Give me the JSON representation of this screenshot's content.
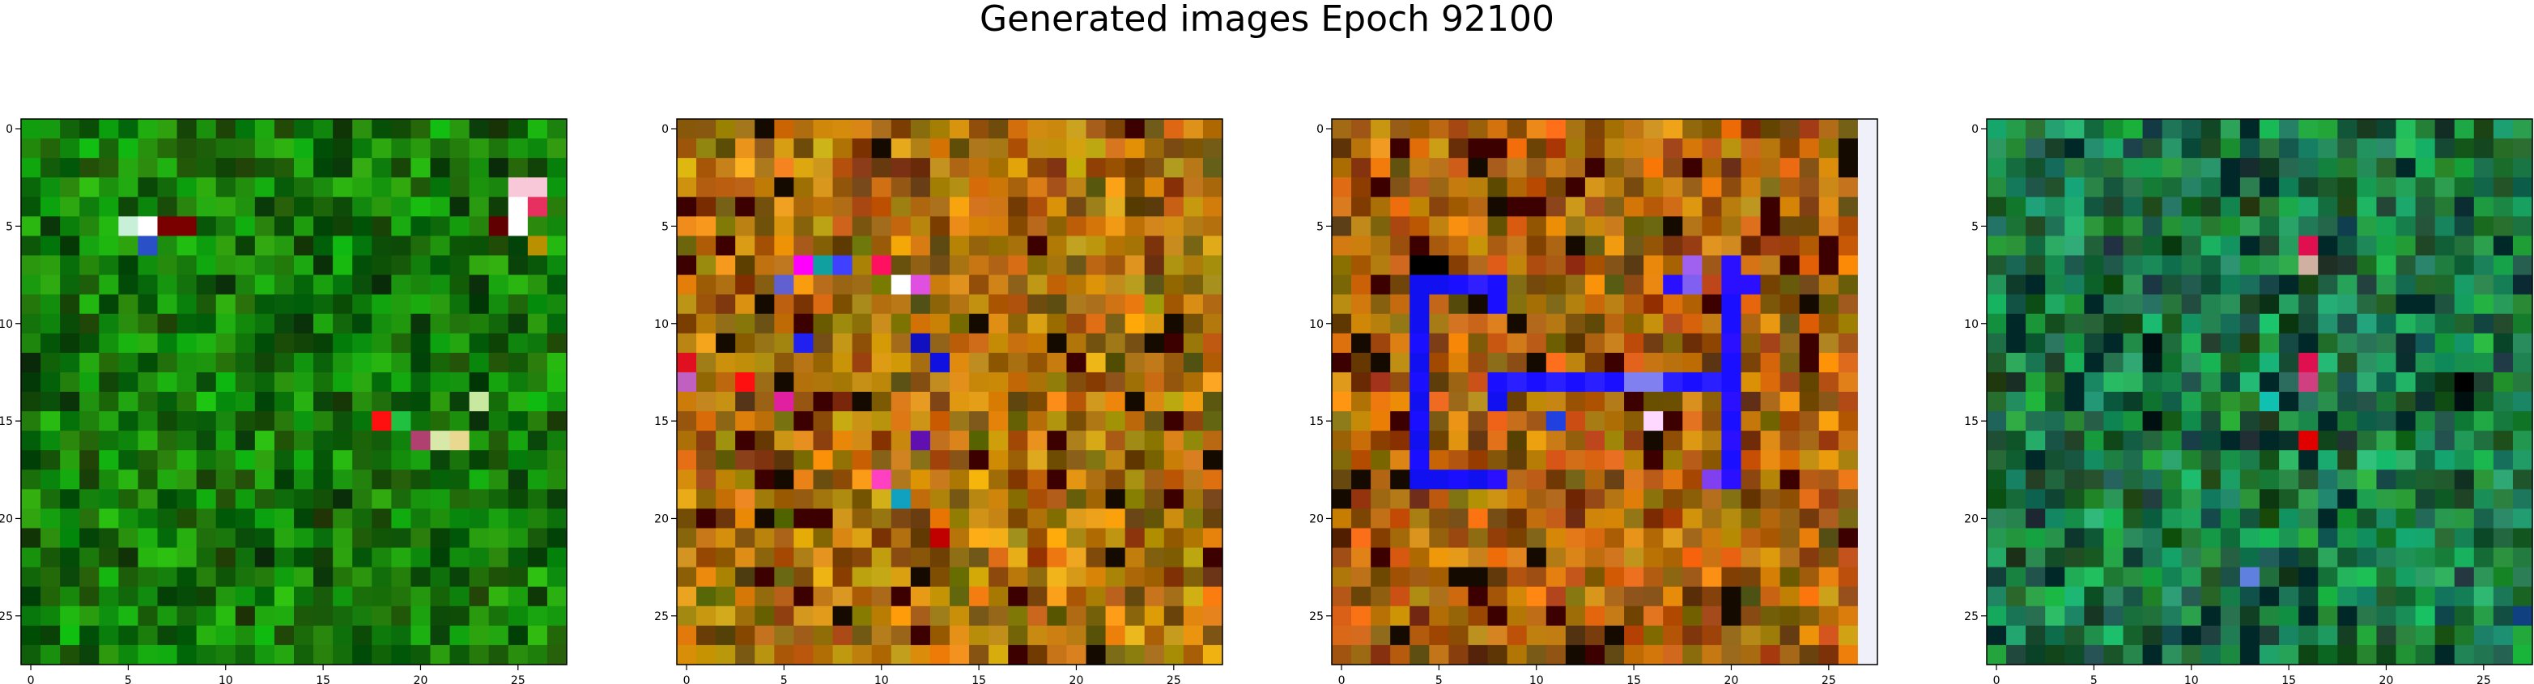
{
  "figure": {
    "title": "Generated images Epoch 92100"
  },
  "chart_data": [
    {
      "type": "heatmap",
      "xlim": [
        -0.5,
        27.5
      ],
      "ylim": [
        27.5,
        -0.5
      ],
      "xticks": [
        "0",
        "5",
        "10",
        "15",
        "20",
        "25"
      ],
      "yticks": [
        "0",
        "5",
        "10",
        "15",
        "20",
        "25"
      ],
      "grid": false,
      "palette": {
        "base": "#1a8a10",
        "variation": "green"
      },
      "highlights": [
        {
          "row": 5,
          "col": 5,
          "color": "#c8f0d8"
        },
        {
          "row": 5,
          "col": 6,
          "color": "#ffffff"
        },
        {
          "row": 6,
          "col": 6,
          "color": "#2a50c8"
        },
        {
          "row": 5,
          "col": 7,
          "color": "#7a0000"
        },
        {
          "row": 5,
          "col": 8,
          "color": "#7a0000"
        },
        {
          "row": 3,
          "col": 25,
          "color": "#f8c8d8"
        },
        {
          "row": 3,
          "col": 26,
          "color": "#f8c8d8"
        },
        {
          "row": 4,
          "col": 25,
          "color": "#ffffff"
        },
        {
          "row": 4,
          "col": 26,
          "color": "#e83060"
        },
        {
          "row": 5,
          "col": 25,
          "color": "#ffffff"
        },
        {
          "row": 5,
          "col": 24,
          "color": "#600000"
        },
        {
          "row": 6,
          "col": 26,
          "color": "#b89000"
        },
        {
          "row": 15,
          "col": 18,
          "color": "#ff1010"
        },
        {
          "row": 15,
          "col": 19,
          "color": "#20c040"
        },
        {
          "row": 16,
          "col": 21,
          "color": "#d8e8a8"
        },
        {
          "row": 16,
          "col": 22,
          "color": "#e8d890"
        },
        {
          "row": 16,
          "col": 20,
          "color": "#b04070"
        },
        {
          "row": 14,
          "col": 23,
          "color": "#c8e8a0"
        }
      ]
    },
    {
      "type": "heatmap",
      "xlim": [
        -0.5,
        27.5
      ],
      "ylim": [
        27.5,
        -0.5
      ],
      "xticks": [
        "0",
        "5",
        "10",
        "15",
        "20",
        "25"
      ],
      "yticks": [
        "0",
        "5",
        "10",
        "15",
        "20",
        "25"
      ],
      "grid": false,
      "palette": {
        "base": "#b07a10",
        "variation": "warm"
      },
      "highlights": [
        {
          "row": 7,
          "col": 6,
          "color": "#ff00ff"
        },
        {
          "row": 7,
          "col": 7,
          "color": "#10a0a0"
        },
        {
          "row": 7,
          "col": 8,
          "color": "#4040ff"
        },
        {
          "row": 7,
          "col": 10,
          "color": "#ff1060"
        },
        {
          "row": 8,
          "col": 5,
          "color": "#6060d0"
        },
        {
          "row": 8,
          "col": 11,
          "color": "#ffffff"
        },
        {
          "row": 8,
          "col": 12,
          "color": "#e050e0"
        },
        {
          "row": 11,
          "col": 6,
          "color": "#2020f0"
        },
        {
          "row": 11,
          "col": 12,
          "color": "#1010c0"
        },
        {
          "row": 12,
          "col": 13,
          "color": "#1010e0"
        },
        {
          "row": 12,
          "col": 0,
          "color": "#e01020"
        },
        {
          "row": 13,
          "col": 0,
          "color": "#c060c0"
        },
        {
          "row": 13,
          "col": 3,
          "color": "#ff1010"
        },
        {
          "row": 14,
          "col": 5,
          "color": "#e020a0"
        },
        {
          "row": 16,
          "col": 12,
          "color": "#6010b0"
        },
        {
          "row": 18,
          "col": 10,
          "color": "#ff40c0"
        },
        {
          "row": 19,
          "col": 11,
          "color": "#10a0c0"
        },
        {
          "row": 21,
          "col": 13,
          "color": "#c00000"
        }
      ]
    },
    {
      "type": "heatmap",
      "xlim": [
        -0.5,
        27.5
      ],
      "ylim": [
        27.5,
        -0.5
      ],
      "xticks": [
        "0",
        "5",
        "10",
        "15",
        "20",
        "25"
      ],
      "yticks": [
        "0",
        "5",
        "10",
        "15",
        "20",
        "25"
      ],
      "grid": false,
      "palette": {
        "base": "#b06a10",
        "variation": "warm",
        "edge_column": {
          "col": 27,
          "color": "#f0f0fa"
        }
      },
      "highlights": [
        {
          "row": 7,
          "col": 4,
          "color": "#000000"
        },
        {
          "row": 7,
          "col": 5,
          "color": "#000000"
        },
        {
          "row": 8,
          "col": 4,
          "color": "#1010f0"
        },
        {
          "row": 8,
          "col": 5,
          "color": "#1010f0"
        },
        {
          "row": 8,
          "col": 6,
          "color": "#1a10ff"
        },
        {
          "row": 8,
          "col": 7,
          "color": "#3020ff"
        },
        {
          "row": 8,
          "col": 8,
          "color": "#1a10ff"
        },
        {
          "row": 9,
          "col": 4,
          "color": "#1010f0"
        },
        {
          "row": 9,
          "col": 8,
          "color": "#1a10ff"
        },
        {
          "row": 10,
          "col": 4,
          "color": "#1010f0"
        },
        {
          "row": 11,
          "col": 4,
          "color": "#1a10ff"
        },
        {
          "row": 12,
          "col": 4,
          "color": "#1010f0"
        },
        {
          "row": 13,
          "col": 4,
          "color": "#1a10ff"
        },
        {
          "row": 14,
          "col": 4,
          "color": "#1010f0"
        },
        {
          "row": 15,
          "col": 4,
          "color": "#1a10ff"
        },
        {
          "row": 16,
          "col": 4,
          "color": "#1010f0"
        },
        {
          "row": 17,
          "col": 4,
          "color": "#1a10ff"
        },
        {
          "row": 18,
          "col": 4,
          "color": "#1010f0"
        },
        {
          "row": 18,
          "col": 5,
          "color": "#1010f0"
        },
        {
          "row": 18,
          "col": 6,
          "color": "#1a10ff"
        },
        {
          "row": 18,
          "col": 7,
          "color": "#1010f0"
        },
        {
          "row": 18,
          "col": 8,
          "color": "#2a10ff"
        },
        {
          "row": 13,
          "col": 8,
          "color": "#1a10ff"
        },
        {
          "row": 13,
          "col": 9,
          "color": "#2a20ff"
        },
        {
          "row": 13,
          "col": 10,
          "color": "#1a10ff"
        },
        {
          "row": 13,
          "col": 11,
          "color": "#2a20ff"
        },
        {
          "row": 13,
          "col": 12,
          "color": "#1a10ff"
        },
        {
          "row": 13,
          "col": 13,
          "color": "#2a20ff"
        },
        {
          "row": 13,
          "col": 14,
          "color": "#1a10ff"
        },
        {
          "row": 13,
          "col": 15,
          "color": "#8080f0"
        },
        {
          "row": 13,
          "col": 16,
          "color": "#8080f0"
        },
        {
          "row": 13,
          "col": 17,
          "color": "#2a20ff"
        },
        {
          "row": 13,
          "col": 18,
          "color": "#1a10ff"
        },
        {
          "row": 13,
          "col": 19,
          "color": "#2a20ff"
        },
        {
          "row": 13,
          "col": 20,
          "color": "#1a10ff"
        },
        {
          "row": 14,
          "col": 8,
          "color": "#1010f0"
        },
        {
          "row": 15,
          "col": 11,
          "color": "#2040e0"
        },
        {
          "row": 15,
          "col": 16,
          "color": "#ffd8ff"
        },
        {
          "row": 8,
          "col": 17,
          "color": "#2a10ff"
        },
        {
          "row": 8,
          "col": 18,
          "color": "#8060f0"
        },
        {
          "row": 8,
          "col": 20,
          "color": "#2a10ff"
        },
        {
          "row": 8,
          "col": 21,
          "color": "#2a10ff"
        },
        {
          "row": 7,
          "col": 18,
          "color": "#a060f0"
        },
        {
          "row": 7,
          "col": 20,
          "color": "#2a10ff"
        },
        {
          "row": 9,
          "col": 20,
          "color": "#1a10ff"
        },
        {
          "row": 10,
          "col": 20,
          "color": "#1a10ff"
        },
        {
          "row": 11,
          "col": 20,
          "color": "#2a10ff"
        },
        {
          "row": 12,
          "col": 20,
          "color": "#1a10ff"
        },
        {
          "row": 14,
          "col": 20,
          "color": "#2a10ff"
        },
        {
          "row": 15,
          "col": 20,
          "color": "#1a10ff"
        },
        {
          "row": 16,
          "col": 20,
          "color": "#2a10ff"
        },
        {
          "row": 17,
          "col": 20,
          "color": "#1a10ff"
        },
        {
          "row": 18,
          "col": 20,
          "color": "#2a10ff"
        },
        {
          "row": 18,
          "col": 19,
          "color": "#8040f0"
        }
      ]
    },
    {
      "type": "heatmap",
      "xlim": [
        -0.5,
        27.5
      ],
      "ylim": [
        27.5,
        -0.5
      ],
      "xticks": [
        "0",
        "5",
        "10",
        "15",
        "20",
        "25"
      ],
      "yticks": [
        "0",
        "5",
        "10",
        "15",
        "20",
        "25"
      ],
      "grid": false,
      "palette": {
        "base": "#108a40",
        "variation": "teal"
      },
      "highlights": [
        {
          "row": 6,
          "col": 16,
          "color": "#e01050"
        },
        {
          "row": 7,
          "col": 16,
          "color": "#d0b0a0"
        },
        {
          "row": 12,
          "col": 16,
          "color": "#e01050"
        },
        {
          "row": 13,
          "col": 16,
          "color": "#d04080"
        },
        {
          "row": 16,
          "col": 16,
          "color": "#e00000"
        },
        {
          "row": 14,
          "col": 14,
          "color": "#10c0b0"
        },
        {
          "row": 13,
          "col": 24,
          "color": "#000000"
        },
        {
          "row": 14,
          "col": 24,
          "color": "#001010"
        },
        {
          "row": 11,
          "col": 8,
          "color": "#001010"
        },
        {
          "row": 12,
          "col": 8,
          "color": "#001a1a"
        },
        {
          "row": 15,
          "col": 8,
          "color": "#001010"
        },
        {
          "row": 23,
          "col": 13,
          "color": "#6080e0"
        },
        {
          "row": 25,
          "col": 27,
          "color": "#104080"
        }
      ]
    }
  ]
}
